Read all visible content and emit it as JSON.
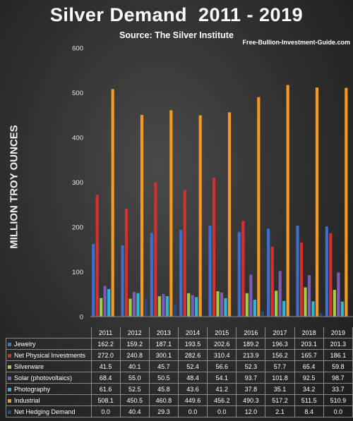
{
  "chart_data": {
    "type": "bar",
    "title": "Silver Demand  2011 - 2019",
    "subtitle": "Source: The Silver Institute",
    "website": "Free-Bullion-Investment-Guide.com",
    "ylabel": "MILLION TROY OUNCES",
    "ylim": [
      0,
      600
    ],
    "yticks": [
      0,
      100,
      200,
      300,
      400,
      500,
      600
    ],
    "grid": false,
    "legend": "data table",
    "categories": [
      "2011",
      "2012",
      "2013",
      "2014",
      "2015",
      "2016",
      "2017",
      "2018",
      "2019"
    ],
    "series": [
      {
        "name": "Jewelry",
        "color": "#3d6fcf",
        "values": [
          162.2,
          159.2,
          187.1,
          193.5,
          202.6,
          189.2,
          196.3,
          203.1,
          201.3
        ]
      },
      {
        "name": "Net Physical Investments",
        "color": "#d4312e",
        "values": [
          272.0,
          240.8,
          300.1,
          282.6,
          310.4,
          213.9,
          156.2,
          165.7,
          186.1
        ]
      },
      {
        "name": "Silverware",
        "color": "#a6cc3f",
        "values": [
          41.5,
          40.1,
          45.7,
          52.4,
          56.6,
          52.3,
          57.7,
          65.4,
          59.8
        ]
      },
      {
        "name": "Solar (photovoltaics)",
        "color": "#7d5cb8",
        "values": [
          68.4,
          55.0,
          50.5,
          48.4,
          54.1,
          93.7,
          101.8,
          92.5,
          98.7
        ]
      },
      {
        "name": "Photography",
        "color": "#31b5d6",
        "values": [
          61.6,
          52.5,
          45.8,
          43.6,
          41.2,
          37.8,
          35.1,
          34.2,
          33.7
        ]
      },
      {
        "name": "Industrial",
        "color": "#f39a1f",
        "values": [
          508.1,
          450.5,
          460.8,
          449.6,
          456.2,
          490.3,
          517.2,
          511.5,
          510.9
        ]
      },
      {
        "name": "Net Hedging Demand",
        "color": "#284a7a",
        "values": [
          0.0,
          40.4,
          29.3,
          0.0,
          0.0,
          12.0,
          2.1,
          8.4,
          0.0
        ]
      }
    ],
    "table_values": [
      [
        "162.2",
        "159.2",
        "187.1",
        "193.5",
        "202.6",
        "189.2",
        "196.3",
        "203.1",
        "201.3"
      ],
      [
        "272.0",
        "240.8",
        "300.1",
        "282.6",
        "310.4",
        "213.9",
        "156.2",
        "165.7",
        "186.1"
      ],
      [
        "41.5",
        "40.1",
        "45.7",
        "52.4",
        "56.6",
        "52.3",
        "57.7",
        "65.4",
        "59.8"
      ],
      [
        "68.4",
        "55.0",
        "50.5",
        "48.4",
        "54.1",
        "93.7",
        "101.8",
        "92.5",
        "98.7"
      ],
      [
        "61.6",
        "52.5",
        "45.8",
        "43.6",
        "41.2",
        "37.8",
        "35.1",
        "34.2",
        "33.7"
      ],
      [
        "508.1",
        "450.5",
        "460.8",
        "449.6",
        "456.2",
        "490.3",
        "517.2",
        "511.5",
        "510.9"
      ],
      [
        "0.0",
        "40.4",
        "29.3",
        "0.0",
        "0.0",
        "12.0",
        "2.1",
        "8.4",
        "0.0"
      ]
    ]
  }
}
